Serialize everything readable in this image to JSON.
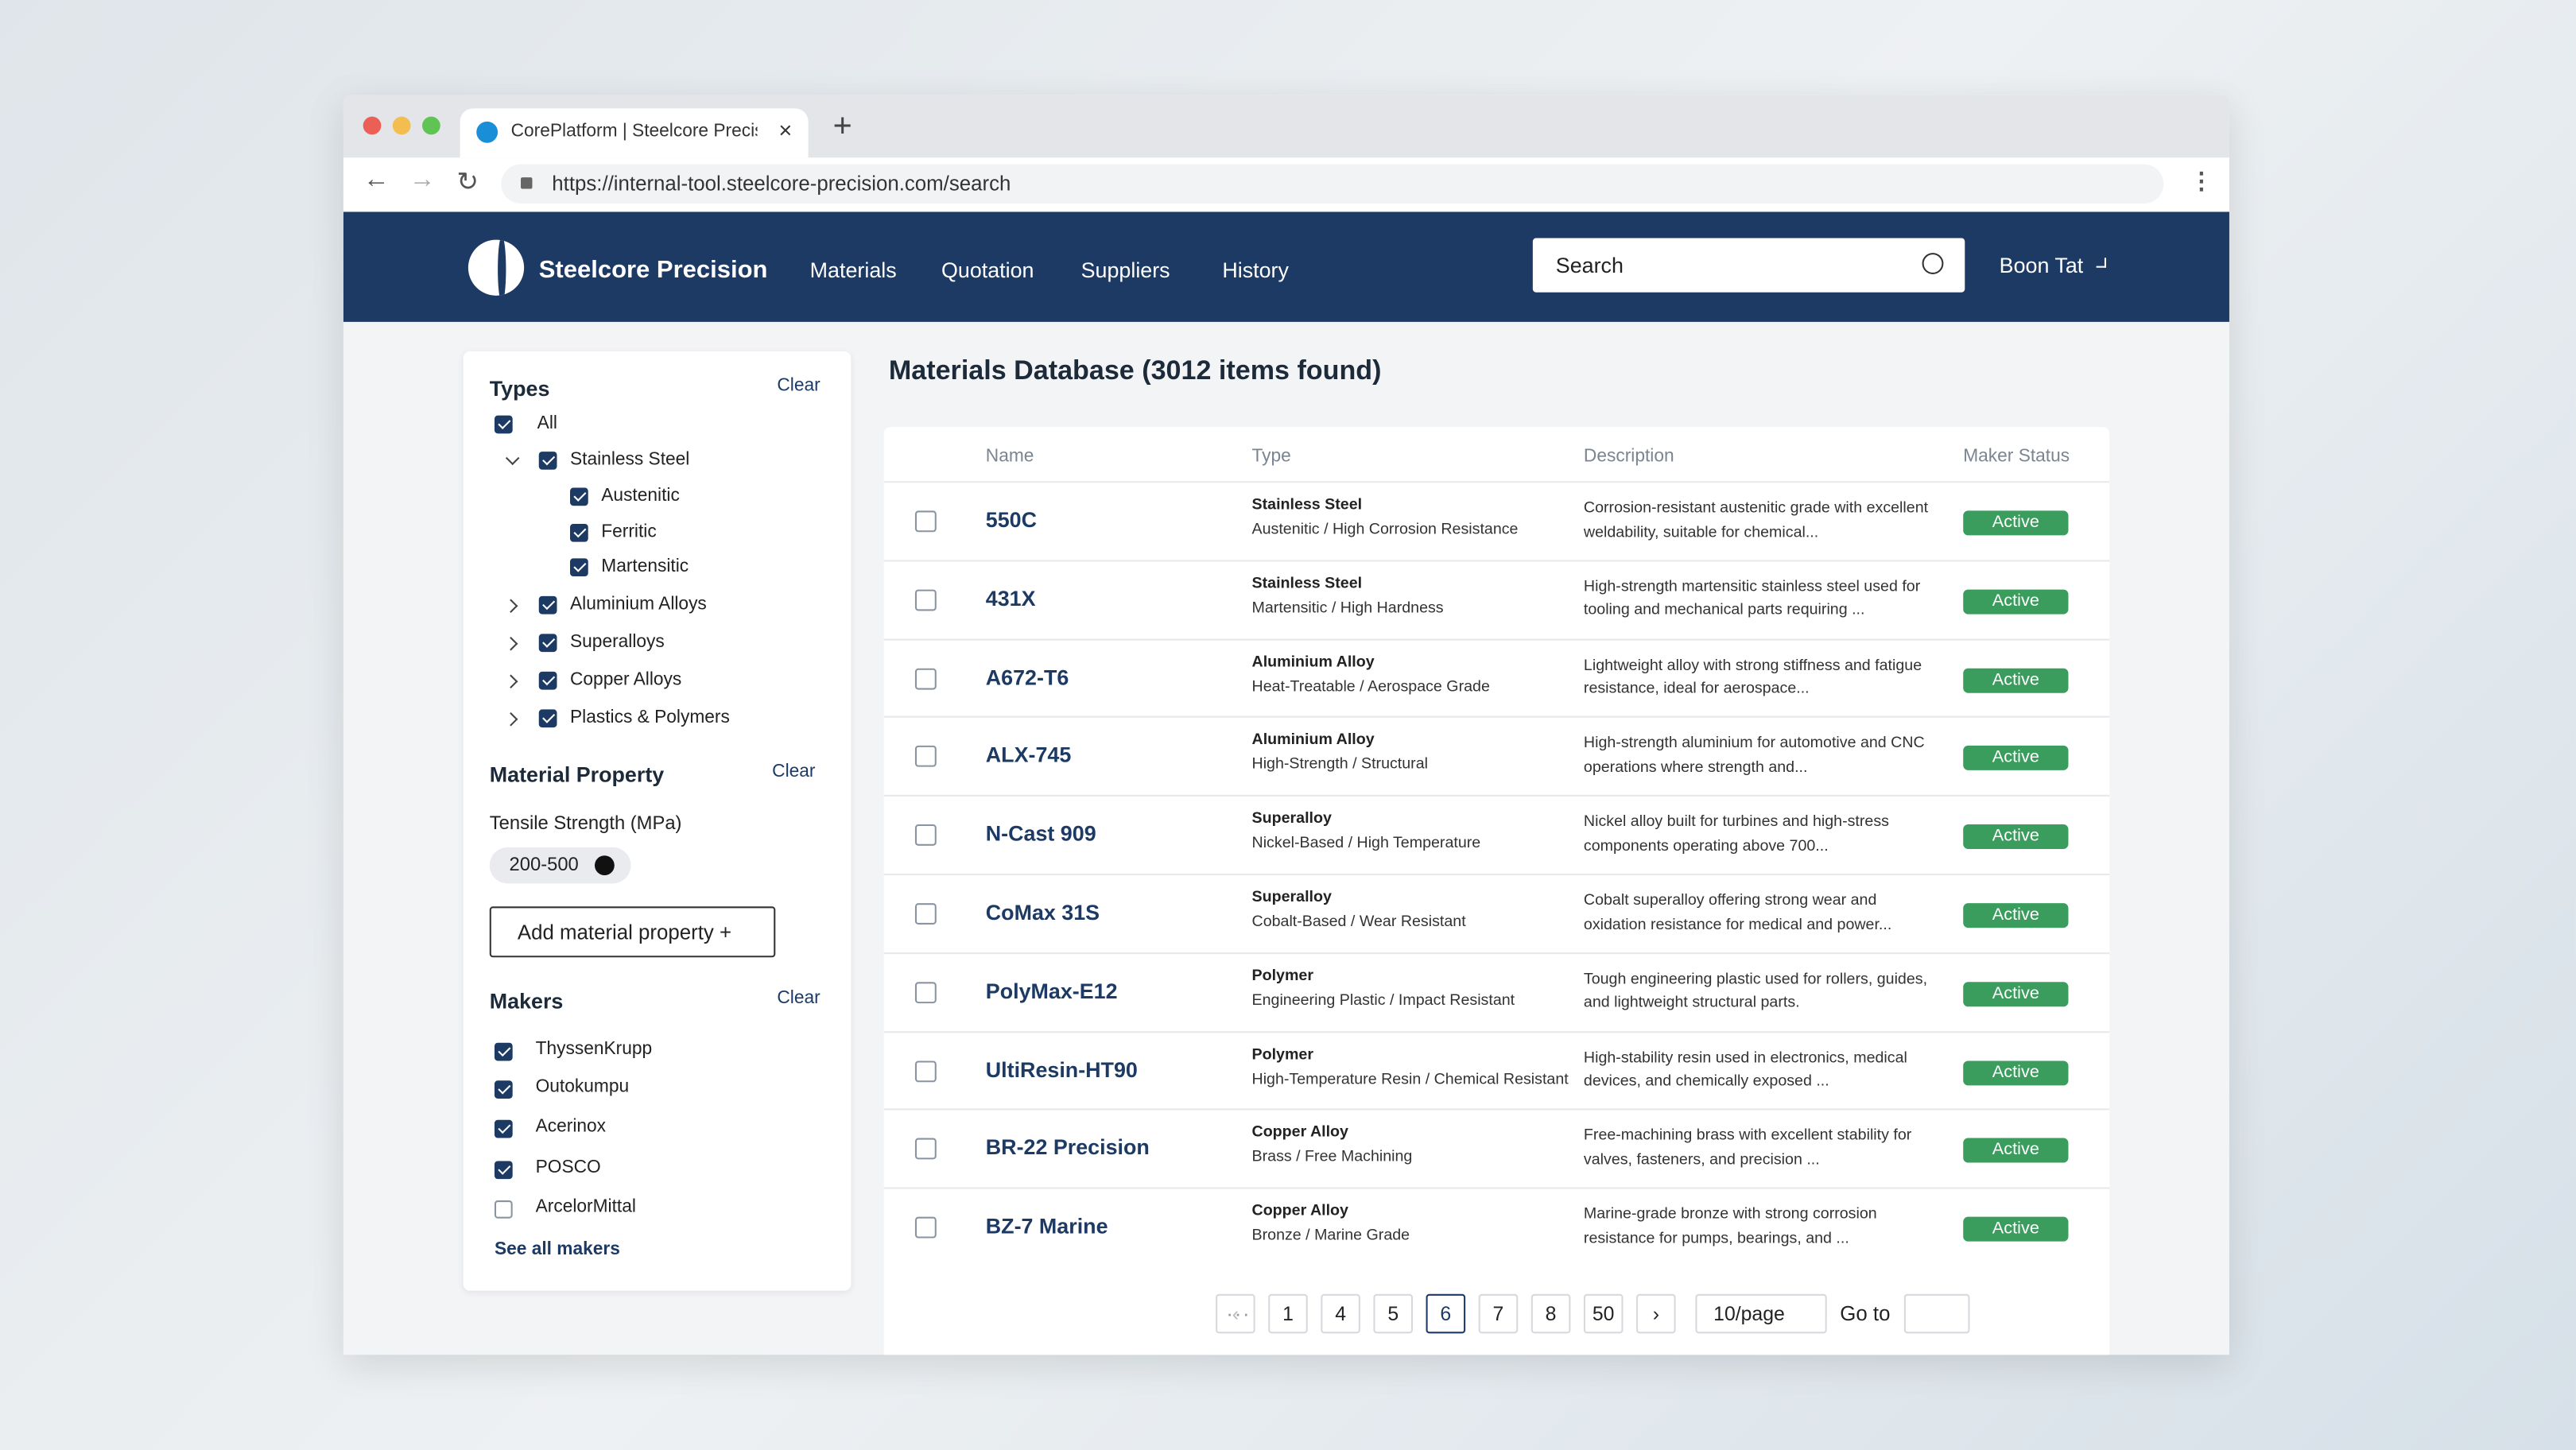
{
  "browser": {
    "tab_title": "CorePlatform | Steelcore Precis",
    "url": "https://internal-tool.steelcore-precision.com/search"
  },
  "nav": {
    "brand": "Steelcore Precision",
    "links": [
      "Materials",
      "Quotation",
      "Suppliers",
      "History"
    ],
    "search_placeholder": "Search",
    "user": "Boon Tat"
  },
  "sidebar": {
    "types": {
      "title": "Types",
      "clear": "Clear",
      "items": [
        {
          "label": "All",
          "checked": true,
          "level": 0
        },
        {
          "label": "Stainless Steel",
          "checked": true,
          "level": 1,
          "expanded": true
        },
        {
          "label": "Austenitic",
          "checked": true,
          "level": 2
        },
        {
          "label": "Ferritic",
          "checked": true,
          "level": 2
        },
        {
          "label": "Martensitic",
          "checked": true,
          "level": 2
        },
        {
          "label": "Aluminium Alloys",
          "checked": true,
          "level": 1,
          "expanded": false
        },
        {
          "label": "Superalloys",
          "checked": true,
          "level": 1,
          "expanded": false
        },
        {
          "label": "Copper Alloys",
          "checked": true,
          "level": 1,
          "expanded": false
        },
        {
          "label": "Plastics & Polymers",
          "checked": true,
          "level": 1,
          "expanded": false
        }
      ]
    },
    "property": {
      "title": "Material Property",
      "clear": "Clear",
      "label": "Tensile Strength (MPa)",
      "chip": "200-500",
      "add_button": "Add material property +"
    },
    "makers": {
      "title": "Makers",
      "clear": "Clear",
      "items": [
        {
          "label": "ThyssenKrupp",
          "checked": true
        },
        {
          "label": "Outokumpu",
          "checked": true
        },
        {
          "label": "Acerinox",
          "checked": true
        },
        {
          "label": "POSCO",
          "checked": true
        },
        {
          "label": "ArcelorMittal",
          "checked": false
        }
      ],
      "see_all": "See all makers"
    }
  },
  "main": {
    "heading": "Materials Database (3012 items found)",
    "table": {
      "columns": [
        "Name",
        "Type",
        "Description",
        "Maker Status"
      ],
      "rows": [
        {
          "name": "550C",
          "type": "Stainless Steel",
          "subtype": "Austenitic / High Corrosion Resistance",
          "description": "Corrosion-resistant austenitic grade with excellent weldability, suitable for chemical...",
          "status": "Active"
        },
        {
          "name": "431X",
          "type": "Stainless Steel",
          "subtype": "Martensitic / High Hardness",
          "description": "High-strength martensitic stainless steel used for tooling and mechanical parts requiring ...",
          "status": "Active"
        },
        {
          "name": "A672-T6",
          "type": "Aluminium Alloy",
          "subtype": "Heat-Treatable / Aerospace Grade",
          "description": "Lightweight alloy with strong stiffness and fatigue resistance, ideal for aerospace...",
          "status": "Active"
        },
        {
          "name": "ALX-745",
          "type": "Aluminium Alloy",
          "subtype": "High-Strength / Structural",
          "description": "High-strength aluminium for automotive and CNC operations where strength and...",
          "status": "Active"
        },
        {
          "name": "N-Cast 909",
          "type": "Superalloy",
          "subtype": "Nickel-Based / High Temperature",
          "description": "Nickel alloy built for turbines and high-stress components operating above 700...",
          "status": "Active"
        },
        {
          "name": "CoMax 31S",
          "type": "Superalloy",
          "subtype": "Cobalt-Based / Wear Resistant",
          "description": "Cobalt superalloy offering strong wear and oxidation resistance for medical and power...",
          "status": "Active"
        },
        {
          "name": "PolyMax-E12",
          "type": "Polymer",
          "subtype": "Engineering Plastic / Impact Resistant",
          "description": "Tough engineering plastic used for rollers, guides, and lightweight structural parts.",
          "status": "Active"
        },
        {
          "name": "UltiResin-HT90",
          "type": "Polymer",
          "subtype": "High-Temperature Resin / Chemical Resistant",
          "description": "High-stability resin used in electronics, medical devices, and chemically exposed ...",
          "status": "Active"
        },
        {
          "name": "BR-22 Precision",
          "type": "Copper Alloy",
          "subtype": "Brass / Free Machining",
          "description": "Free-machining brass with excellent stability for valves, fasteners, and precision ...",
          "status": "Active"
        },
        {
          "name": "BZ-7 Marine",
          "type": "Copper Alloy",
          "subtype": "Bronze / Marine Grade",
          "description": "Marine-grade bronze with strong corrosion resistance for pumps, bearings, and ...",
          "status": "Active"
        }
      ]
    },
    "pagination": {
      "pages": [
        "1",
        null,
        "4",
        "5",
        "6",
        "7",
        "8",
        null,
        "50"
      ],
      "current": "6",
      "page_size": "10/page",
      "goto": "Go to"
    }
  }
}
